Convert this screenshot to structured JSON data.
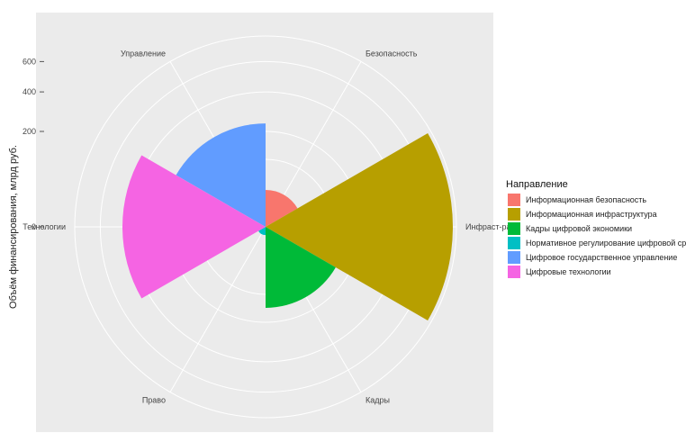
{
  "chart_data": {
    "type": "coxcomb",
    "ylabel": "Объём финансирования, млрд руб.",
    "y_ticks": [
      0,
      200,
      400,
      600
    ],
    "y_scale": "sqrt",
    "ylim": [
      0,
      800
    ],
    "grid": true,
    "legend": {
      "title": "Направление",
      "placement": "right"
    },
    "categories": [
      "Безопасность",
      "Инфраст-ра",
      "Кадры",
      "Право",
      "Технологии",
      "Управление"
    ],
    "series": [
      {
        "name": "Информационная безопасность",
        "category": "Безопасность",
        "value": 30,
        "color": "#F8766D"
      },
      {
        "name": "Информационная инфраструктура",
        "category": "Инфраст-ра",
        "value": 770,
        "color": "#B79F00"
      },
      {
        "name": "Кадры цифровой экономики",
        "category": "Кадры",
        "value": 144,
        "color": "#00BA38"
      },
      {
        "name": "Нормативное регулирование цифровой среды",
        "category": "Право",
        "value": 1.5,
        "color": "#00BFC4"
      },
      {
        "name": "Цифровое государственное управление",
        "category": "Управление",
        "value": 235,
        "color": "#619CFF"
      },
      {
        "name": "Цифровые технологии",
        "category": "Технологии",
        "value": 450,
        "color": "#F564E3"
      }
    ]
  }
}
